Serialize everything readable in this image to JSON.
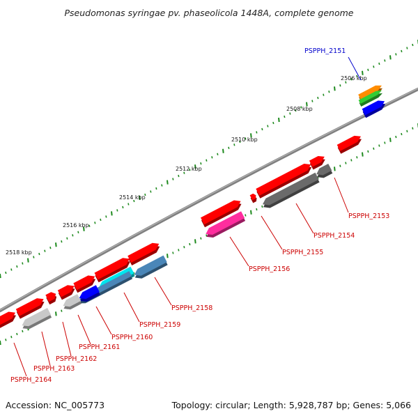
{
  "title": "Pseudomonas syringae pv. phaseolicola 1448A, complete genome",
  "accession_label": "Accession: NC_005773",
  "summary_label": "Topology: circular; Length: 5,928,787 bp; Genes: 5,066",
  "scale_labels": [
    "2506 kbp",
    "2508 kbp",
    "2510 kbp",
    "2512 kbp",
    "2514 kbp",
    "2516 kbp",
    "2518 kbp"
  ],
  "gene_labels": [
    {
      "text": "PSPPH_2151",
      "color": "#0000cc"
    },
    {
      "text": "PSPPH_2153",
      "color": "#cc0000"
    },
    {
      "text": "PSPPH_2154",
      "color": "#cc0000"
    },
    {
      "text": "PSPPH_2155",
      "color": "#cc0000"
    },
    {
      "text": "PSPPH_2156",
      "color": "#cc0000"
    },
    {
      "text": "PSPPH_2158",
      "color": "#cc0000"
    },
    {
      "text": "PSPPH_2159",
      "color": "#cc0000"
    },
    {
      "text": "PSPPH_2160",
      "color": "#cc0000"
    },
    {
      "text": "PSPPH_2161",
      "color": "#cc0000"
    },
    {
      "text": "PSPPH_2162",
      "color": "#cc0000"
    },
    {
      "text": "PSPPH_2163",
      "color": "#cc0000"
    },
    {
      "text": "PSPPH_2164",
      "color": "#cc0000"
    }
  ],
  "colors": {
    "red": "#ff0000",
    "dark_gray": "#6a6a6a",
    "light_gray": "#c8c8c8",
    "magenta": "#ff2d9e",
    "blue": "#0000ff",
    "cyan": "#00e5ee",
    "steel_blue": "#4a86b8",
    "orange": "#ff8c00",
    "green": "#33cc33",
    "backbone": "#808080",
    "tick": "#1e8a1e"
  }
}
